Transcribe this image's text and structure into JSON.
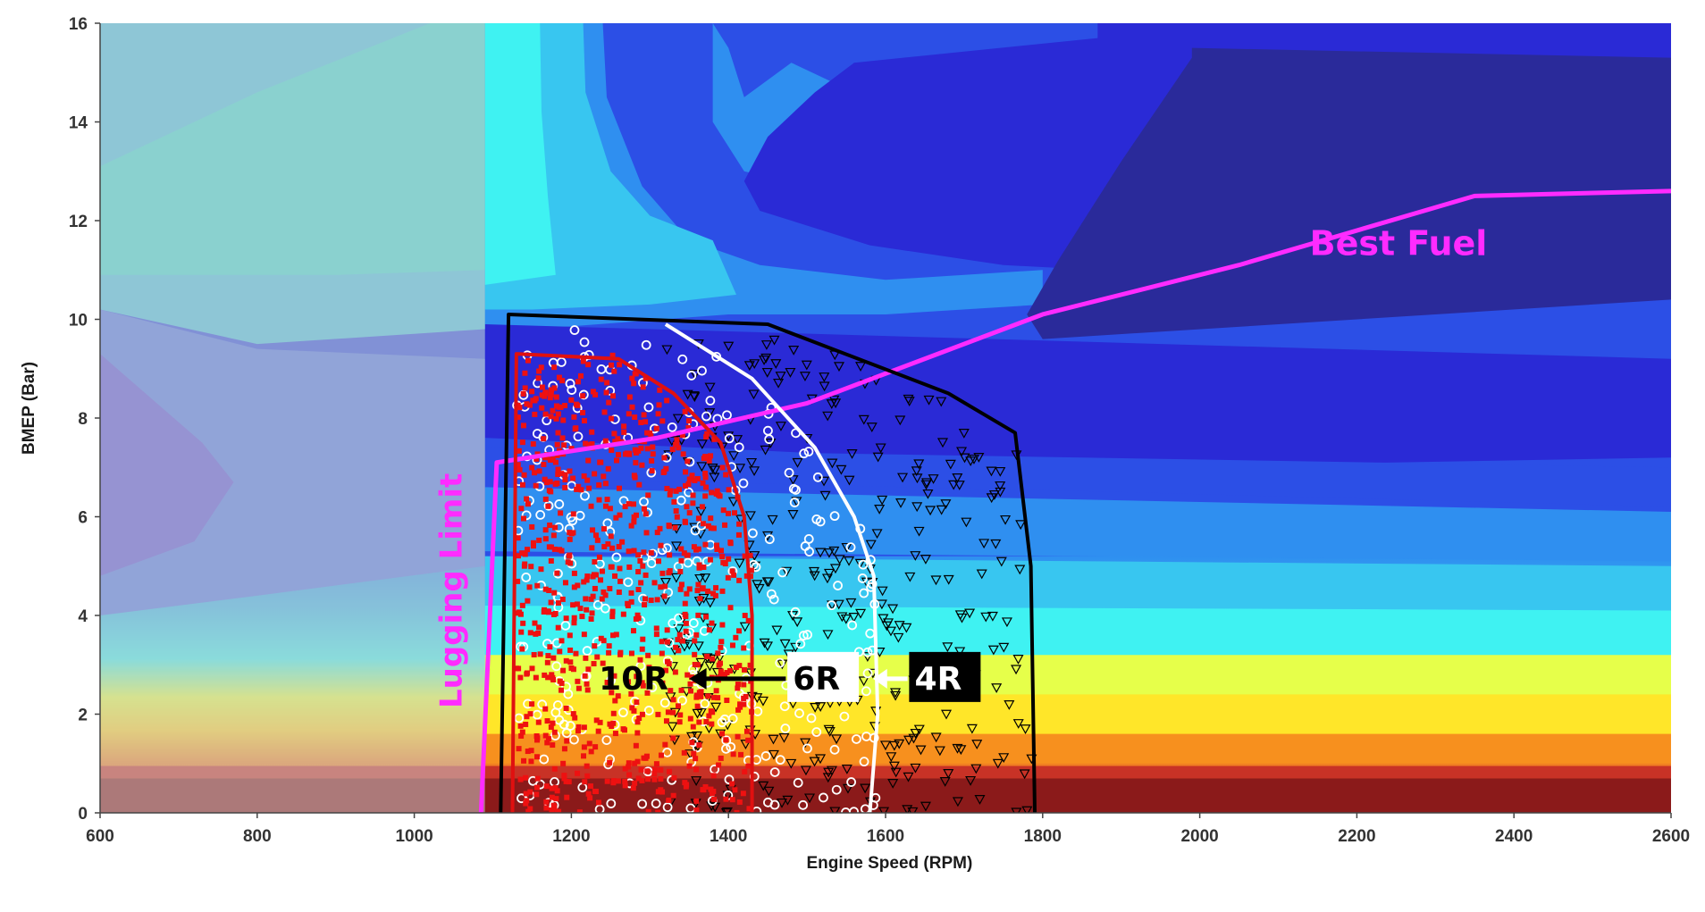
{
  "chart_data": {
    "type": "scatter",
    "subtype": "contour-map-with-scatter-overlay",
    "title": "",
    "xlabel": "Engine Speed (RPM)",
    "ylabel": "BMEP (Bar)",
    "xlim": [
      600,
      2600
    ],
    "ylim": [
      0,
      16
    ],
    "x_ticks": [
      600,
      800,
      1000,
      1200,
      1400,
      1600,
      1800,
      2000,
      2200,
      2400,
      2600
    ],
    "y_ticks": [
      0,
      2,
      4,
      6,
      8,
      10,
      12,
      14,
      16
    ],
    "grid": false,
    "shaded_region": {
      "x": [
        600,
        1090
      ],
      "y": [
        0,
        16
      ],
      "color": "#c8c8c8"
    },
    "contour_colors": [
      "#8b1a1a",
      "#e03a1e",
      "#f7901e",
      "#ffe629",
      "#e6ff4a",
      "#3ff2f2",
      "#38c6f0",
      "#2f8ff0",
      "#2c4fe6",
      "#2a2ad6",
      "#2a2a9a"
    ],
    "series": [
      {
        "name": "Best Fuel",
        "style": "line",
        "color": "#ff2bff",
        "x": [
          1085,
          1105,
          1310,
          1500,
          1800,
          2050,
          2350,
          2600
        ],
        "y": [
          0,
          7.1,
          7.6,
          8.3,
          10.1,
          11.1,
          12.5,
          12.6
        ]
      },
      {
        "name": "Lugging Limit",
        "style": "label",
        "color": "#ff2bff"
      },
      {
        "name": "4R",
        "style": "boundary",
        "color": "#000000",
        "x": [
          1110,
          1120,
          1450,
          1680,
          1765,
          1785,
          1790
        ],
        "y": [
          0,
          10.1,
          9.9,
          8.5,
          7.7,
          5.0,
          0
        ]
      },
      {
        "name": "6R",
        "style": "boundary",
        "color": "#ffffff",
        "x": [
          1320,
          1430,
          1510,
          1560,
          1585,
          1590,
          1580
        ],
        "y": [
          9.9,
          8.8,
          7.4,
          6.0,
          4.8,
          2.0,
          0
        ]
      },
      {
        "name": "10R",
        "style": "boundary",
        "color": "#e01010",
        "x": [
          1125,
          1130,
          1260,
          1330,
          1390,
          1420,
          1430,
          1430
        ],
        "y": [
          0,
          9.3,
          9.2,
          8.5,
          7.5,
          6.0,
          4.0,
          0
        ]
      }
    ],
    "annotations": [
      {
        "text": "Best Fuel",
        "color": "#ff2bff"
      },
      {
        "text": "Lugging Limit",
        "color": "#ff2bff"
      },
      {
        "text": "10R",
        "color": "#000000"
      },
      {
        "text": "6R",
        "color": "#000000"
      },
      {
        "text": "4R",
        "color": "#ffffff",
        "background": "#000000"
      }
    ],
    "legend": "none"
  }
}
